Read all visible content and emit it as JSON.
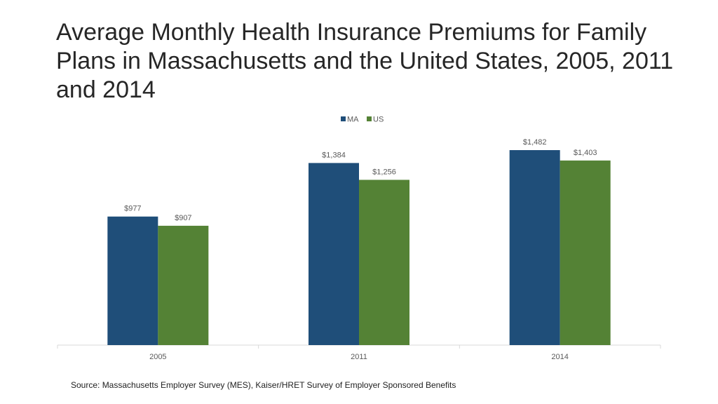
{
  "title": "Average Monthly Health Insurance Premiums for Family Plans in Massachusetts and the United States, 2005, 2011 and 2014",
  "source": "Source: Massachusetts Employer Survey (MES), Kaiser/HRET Survey of Employer Sponsored Benefits",
  "chart_data": {
    "type": "bar",
    "categories": [
      "2005",
      "2011",
      "2014"
    ],
    "series": [
      {
        "name": "MA",
        "values": [
          977,
          1384,
          1482
        ],
        "labels": [
          "$977",
          "$1,384",
          "$1,482"
        ],
        "color": "#1f4e79"
      },
      {
        "name": "US",
        "values": [
          907,
          1256,
          1403
        ],
        "labels": [
          "$907",
          "$1,256",
          "$1,403"
        ],
        "color": "#548235"
      }
    ],
    "ylim": [
      0,
      1600
    ],
    "grid": false,
    "legend": "top-center",
    "axis_color": "#d9d9d9"
  }
}
